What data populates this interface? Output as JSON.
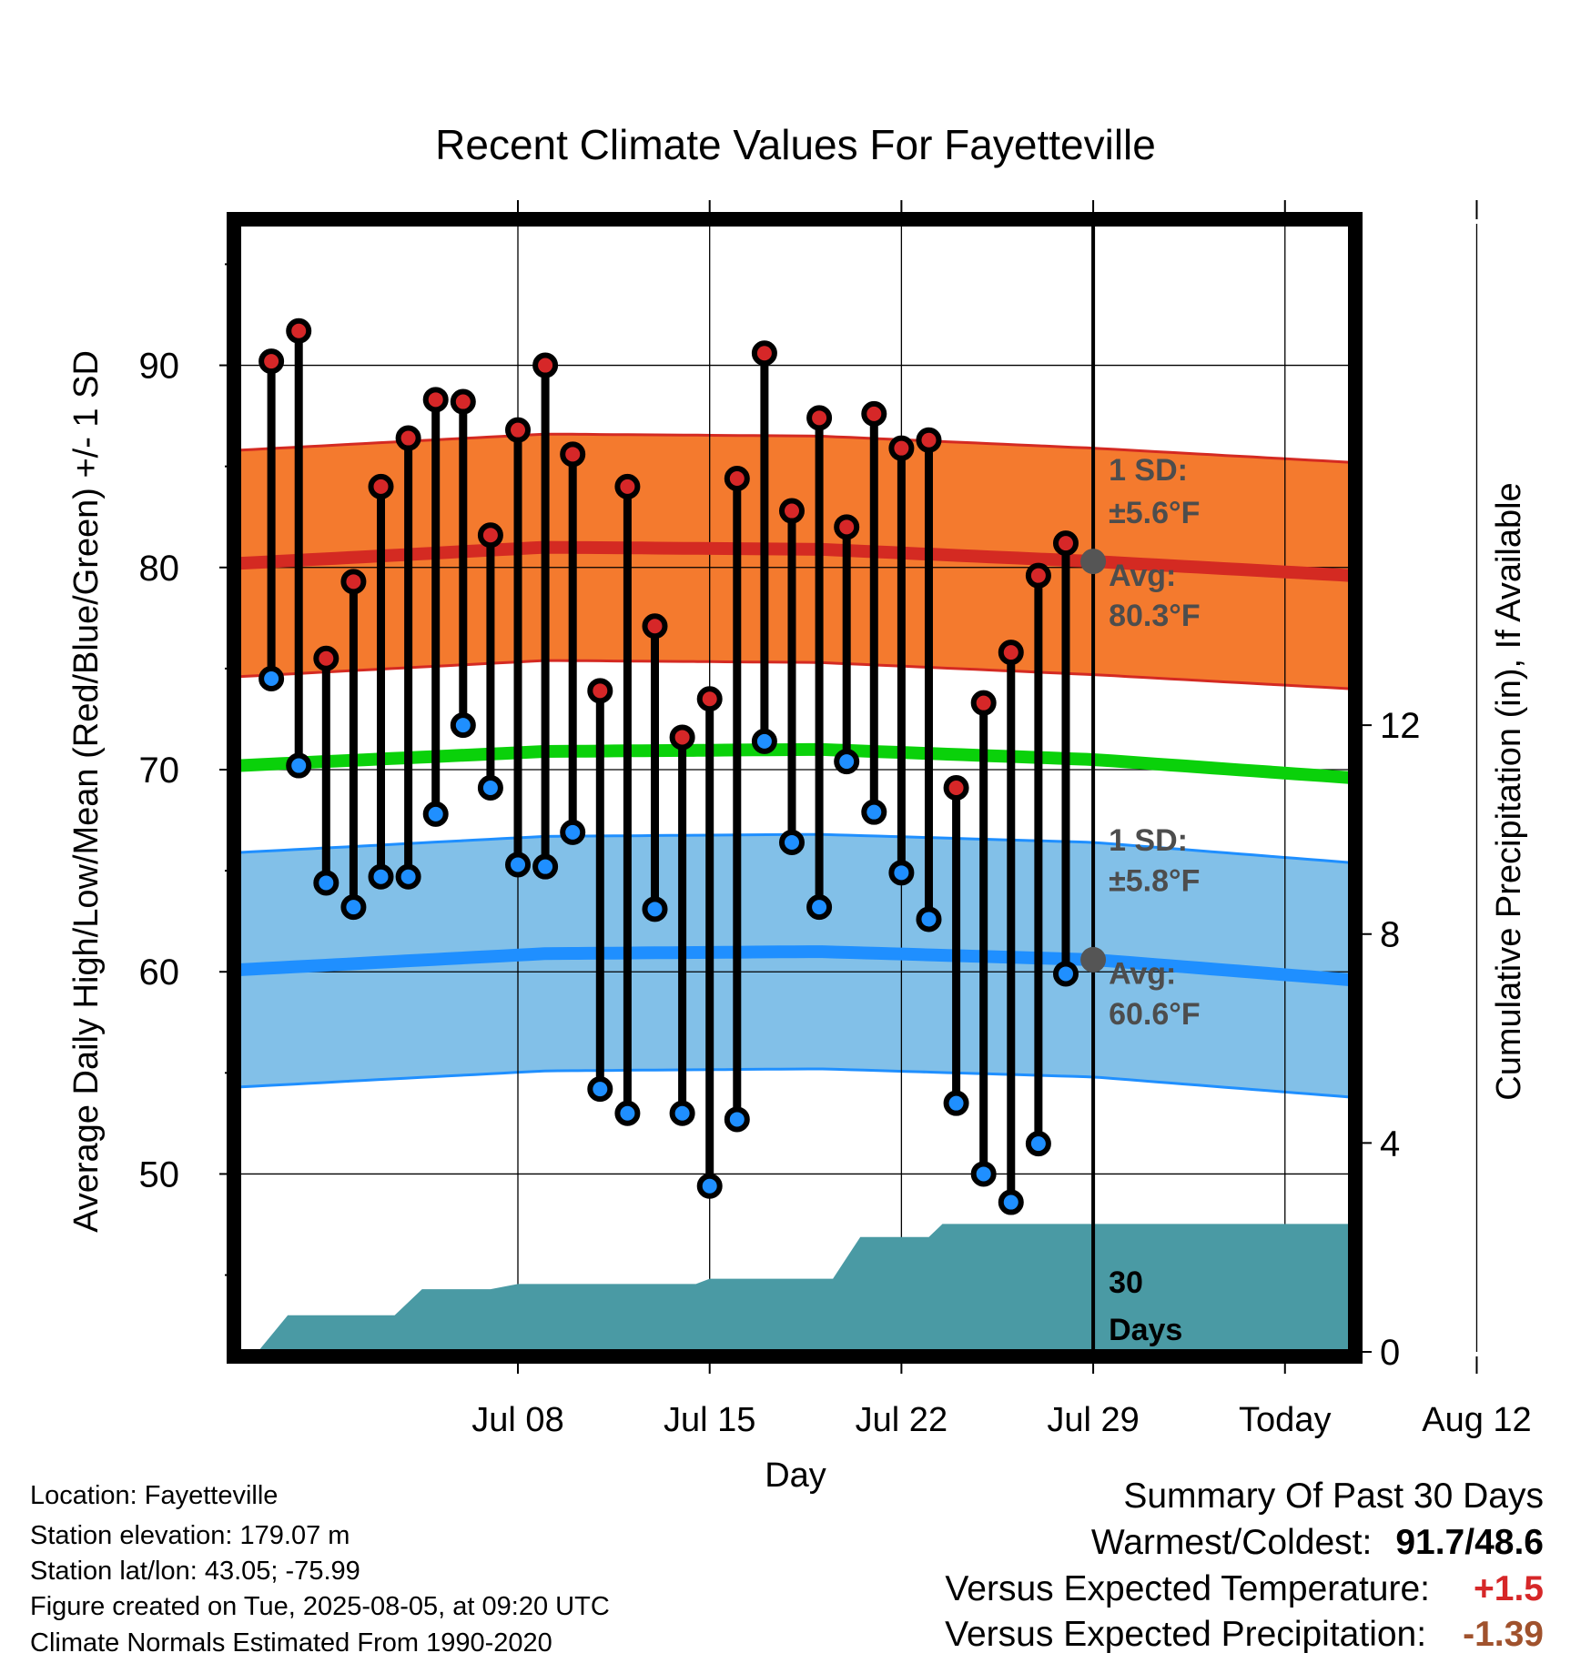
{
  "chart_data": {
    "type": "line",
    "title": "Recent Climate Values For Fayetteville",
    "xlabel": "Day",
    "ylabel": "Average Daily High/Low/Mean (Red/Blue/Green) +/- 1 SD",
    "y2label": "Cumulative Precipitation (in), If Available",
    "x_ticks": [
      "Jul 08",
      "Jul 15",
      "Jul 22",
      "Jul 29",
      "Today",
      "Aug 12"
    ],
    "y_ticks": [
      "50",
      "60",
      "70",
      "80",
      "90"
    ],
    "y2_ticks": [
      "0",
      "4",
      "8",
      "12"
    ],
    "ylim": [
      41.2,
      97.0
    ],
    "y2lim": [
      0,
      21.6
    ],
    "xlim_days_from_today": [
      -31.2,
      9.4
    ],
    "days_from_today": [
      -30,
      -29,
      -28,
      -27,
      -26,
      -25,
      -24,
      -23,
      -22,
      -21,
      -20,
      -19,
      -18,
      -17,
      -16,
      -15,
      -14,
      -13,
      -12,
      -11,
      -10,
      -9,
      -8,
      -7,
      -6,
      -5,
      -4,
      -3,
      -2,
      -1
    ],
    "series": [
      {
        "name": "High",
        "color": "#d62728",
        "values": [
          90.2,
          91.7,
          75.5,
          79.3,
          84.0,
          86.4,
          88.3,
          88.2,
          81.6,
          86.8,
          90.0,
          85.6,
          73.9,
          84.0,
          77.1,
          71.6,
          73.5,
          84.4,
          90.6,
          82.8,
          87.4,
          82.0,
          87.6,
          85.9,
          86.3,
          69.1,
          73.3,
          75.8,
          79.6,
          81.2
        ]
      },
      {
        "name": "Low",
        "color": "#1f8fff",
        "values": [
          74.5,
          70.2,
          64.4,
          63.2,
          64.7,
          64.7,
          67.8,
          72.2,
          69.1,
          65.3,
          65.2,
          66.9,
          54.2,
          53.0,
          63.1,
          53.0,
          49.4,
          52.7,
          71.4,
          66.4,
          63.2,
          70.4,
          67.9,
          64.9,
          62.6,
          53.5,
          50.0,
          48.6,
          51.5,
          59.9
        ]
      }
    ],
    "normals": {
      "high_avg": [
        [
          -31.2,
          80.2
        ],
        [
          -20,
          81.0
        ],
        [
          -10,
          80.9
        ],
        [
          0,
          80.3
        ],
        [
          9.4,
          79.6
        ]
      ],
      "high_sd": 5.6,
      "low_avg": [
        [
          -31.2,
          60.1
        ],
        [
          -20,
          60.9
        ],
        [
          -10,
          61.0
        ],
        [
          0,
          60.6
        ],
        [
          9.4,
          59.6
        ]
      ],
      "low_sd": 5.8,
      "mean_avg": [
        [
          -31.2,
          70.2
        ],
        [
          -20,
          70.9
        ],
        [
          -10,
          71.0
        ],
        [
          0,
          70.5
        ],
        [
          9.4,
          69.6
        ]
      ],
      "high_band_color": "#f47a2e",
      "high_line_color": "#d42a22",
      "low_band_color": "#82c0e8",
      "low_line_color": "#1f8fff",
      "mean_line_color": "#0ad10a"
    },
    "precip_cumulative": [
      [
        -30.5,
        0
      ],
      [
        -29.4,
        0.7
      ],
      [
        -25.5,
        0.7
      ],
      [
        -24.5,
        1.2
      ],
      [
        -22,
        1.2
      ],
      [
        -21,
        1.3
      ],
      [
        -14.5,
        1.3
      ],
      [
        -14,
        1.4
      ],
      [
        -9.5,
        1.4
      ],
      [
        -8.5,
        2.2
      ],
      [
        -6,
        2.2
      ],
      [
        -5.5,
        2.45
      ],
      [
        9.4,
        2.45
      ]
    ],
    "precip_color": "#4a9aa4",
    "annotations": {
      "high_sd_label": "1 SD:",
      "high_sd_value": "±5.6°F",
      "high_avg_label": "Avg:",
      "high_avg_value": "80.3°F",
      "low_sd_label": "1 SD:",
      "low_sd_value": "±5.8°F",
      "low_avg_label": "Avg:",
      "low_avg_value": "60.6°F",
      "days_count": "30",
      "days_label": "Days"
    },
    "grid": true
  },
  "meta": {
    "location": "Location: Fayetteville",
    "elevation": "Station elevation: 179.07 m",
    "latlon": "Station lat/lon: 43.05; -75.99",
    "created": "Figure created on Tue, 2025-08-05, at 09:20 UTC",
    "normals": "Climate Normals Estimated From 1990-2020"
  },
  "summary": {
    "title": "Summary Of Past 30 Days",
    "warmest_coldest_label": "Warmest/Coldest:",
    "warmest_coldest_value": "91.7/48.6",
    "temp_label": "Versus Expected Temperature:",
    "temp_value": "+1.5",
    "temp_color": "#d62728",
    "precip_label": "Versus Expected Precipitation:",
    "precip_value": "-1.39",
    "precip_value_color": "#a0522d"
  }
}
